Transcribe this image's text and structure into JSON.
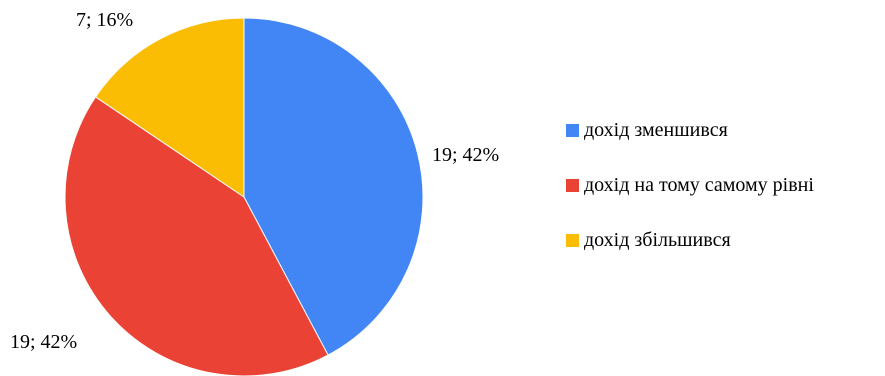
{
  "chart_data": {
    "type": "pie",
    "title": "",
    "legend_position": "right",
    "slices": [
      {
        "name": "дохід зменшився",
        "value": 19,
        "percent": 42,
        "label": "19; 42%",
        "color": "#4285F4"
      },
      {
        "name": "дохід на тому самому рівні",
        "value": 19,
        "percent": 42,
        "label": "19; 42%",
        "color": "#EA4335"
      },
      {
        "name": "дохід збільшився",
        "value": 7,
        "percent": 16,
        "label": "7; 16%",
        "color": "#FBBC04"
      }
    ]
  }
}
